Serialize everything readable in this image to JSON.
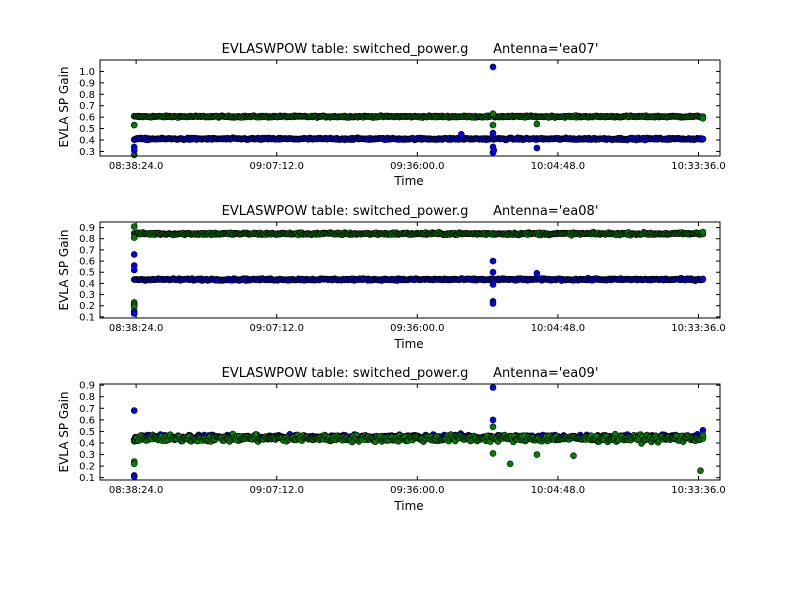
{
  "colors": {
    "series_a": "#0000ff",
    "series_b": "#008000",
    "edge": "#000000",
    "background": "#ffffff"
  },
  "chart_data": [
    {
      "type": "scatter",
      "title": "EVLASWPOW table: switched_power.g      Antenna='ea07'",
      "xlabel": "Time",
      "ylabel": "EVLA SP Gain",
      "xlim": [
        "08:31:00",
        "10:38:00"
      ],
      "ylim": [
        0.26,
        1.1
      ],
      "x_ticks": [
        "08:38:24.0",
        "09:07:12.0",
        "09:36:00.0",
        "10:04:48.0",
        "10:33:36.0"
      ],
      "y_ticks": [
        "0.3",
        "0.4",
        "0.5",
        "0.6",
        "0.7",
        "0.8",
        "0.9",
        "1.0"
      ],
      "grid": false,
      "x_range": [
        "08:38:00",
        "10:34:30"
      ],
      "series": [
        {
          "color": "series_b",
          "band": {
            "center": 0.605,
            "spread": 0.012
          },
          "outliers": [
            {
              "x": "08:38:00",
              "y": 0.53
            },
            {
              "x": "08:38:00",
              "y": 0.27
            },
            {
              "x": "09:51:30",
              "y": 0.63
            },
            {
              "x": "09:51:30",
              "y": 0.53
            },
            {
              "x": "10:00:30",
              "y": 0.54
            },
            {
              "x": "10:34:30",
              "y": 0.59
            }
          ]
        },
        {
          "color": "series_a",
          "band": {
            "center": 0.41,
            "spread": 0.014
          },
          "outliers": [
            {
              "x": "08:38:00",
              "y": 0.34
            },
            {
              "x": "08:38:00",
              "y": 0.31
            },
            {
              "x": "09:45:00",
              "y": 0.45
            },
            {
              "x": "09:51:30",
              "y": 1.04
            },
            {
              "x": "09:51:30",
              "y": 0.46
            },
            {
              "x": "09:51:30",
              "y": 0.34
            },
            {
              "x": "09:51:30",
              "y": 0.29
            },
            {
              "x": "09:51:40",
              "y": 0.31
            },
            {
              "x": "10:00:30",
              "y": 0.33
            },
            {
              "x": "10:34:30",
              "y": 0.41
            }
          ]
        }
      ]
    },
    {
      "type": "scatter",
      "title": "EVLASWPOW table: switched_power.g      Antenna='ea08'",
      "xlabel": "Time",
      "ylabel": "EVLA SP Gain",
      "xlim": [
        "08:31:00",
        "10:38:00"
      ],
      "ylim": [
        0.09,
        0.95
      ],
      "x_ticks": [
        "08:38:24.0",
        "09:07:12.0",
        "09:36:00.0",
        "10:04:48.0",
        "10:33:36.0"
      ],
      "y_ticks": [
        "0.1",
        "0.2",
        "0.3",
        "0.4",
        "0.5",
        "0.6",
        "0.7",
        "0.8",
        "0.9"
      ],
      "grid": false,
      "x_range": [
        "08:38:00",
        "10:34:30"
      ],
      "series": [
        {
          "color": "series_b",
          "band": {
            "center": 0.845,
            "spread": 0.018
          },
          "outliers": [
            {
              "x": "08:38:00",
              "y": 0.91
            },
            {
              "x": "08:38:00",
              "y": 0.81
            },
            {
              "x": "08:38:00",
              "y": 0.23
            },
            {
              "x": "08:38:00",
              "y": 0.21
            },
            {
              "x": "08:38:00",
              "y": 0.19
            },
            {
              "x": "10:34:30",
              "y": 0.86
            }
          ]
        },
        {
          "color": "series_a",
          "band": {
            "center": 0.435,
            "spread": 0.014
          },
          "outliers": [
            {
              "x": "08:38:00",
              "y": 0.66
            },
            {
              "x": "08:38:00",
              "y": 0.56
            },
            {
              "x": "08:38:00",
              "y": 0.52
            },
            {
              "x": "08:38:00",
              "y": 0.15
            },
            {
              "x": "08:38:00",
              "y": 0.13
            },
            {
              "x": "09:51:30",
              "y": 0.6
            },
            {
              "x": "09:51:30",
              "y": 0.5
            },
            {
              "x": "09:51:30",
              "y": 0.39
            },
            {
              "x": "09:51:30",
              "y": 0.24
            },
            {
              "x": "09:51:30",
              "y": 0.22
            },
            {
              "x": "10:00:30",
              "y": 0.49
            },
            {
              "x": "10:34:30",
              "y": 0.44
            }
          ]
        }
      ]
    },
    {
      "type": "scatter",
      "title": "EVLASWPOW table: switched_power.g      Antenna='ea09'",
      "xlabel": "Time",
      "ylabel": "EVLA SP Gain",
      "xlim": [
        "08:31:00",
        "10:38:00"
      ],
      "ylim": [
        0.08,
        0.91
      ],
      "x_ticks": [
        "08:38:24.0",
        "09:07:12.0",
        "09:36:00.0",
        "10:04:48.0",
        "10:33:36.0"
      ],
      "y_ticks": [
        "0.1",
        "0.2",
        "0.3",
        "0.4",
        "0.5",
        "0.6",
        "0.7",
        "0.8",
        "0.9"
      ],
      "grid": false,
      "x_range": [
        "08:38:00",
        "10:34:30"
      ],
      "series": [
        {
          "color": "series_a",
          "band": {
            "center": 0.45,
            "spread": 0.04
          },
          "outliers": [
            {
              "x": "08:38:00",
              "y": 0.68
            },
            {
              "x": "08:38:00",
              "y": 0.12
            },
            {
              "x": "08:38:00",
              "y": 0.11
            },
            {
              "x": "09:51:30",
              "y": 0.88
            },
            {
              "x": "09:51:30",
              "y": 0.6
            },
            {
              "x": "10:34:30",
              "y": 0.51
            }
          ]
        },
        {
          "color": "series_b",
          "band": {
            "center": 0.44,
            "spread": 0.05
          },
          "outliers": [
            {
              "x": "08:38:00",
              "y": 0.24
            },
            {
              "x": "08:38:00",
              "y": 0.22
            },
            {
              "x": "09:51:30",
              "y": 0.54
            },
            {
              "x": "09:51:30",
              "y": 0.31
            },
            {
              "x": "09:55:00",
              "y": 0.22
            },
            {
              "x": "10:00:30",
              "y": 0.3
            },
            {
              "x": "10:08:00",
              "y": 0.29
            },
            {
              "x": "10:34:00",
              "y": 0.16
            },
            {
              "x": "10:34:30",
              "y": 0.47
            }
          ]
        }
      ]
    }
  ]
}
